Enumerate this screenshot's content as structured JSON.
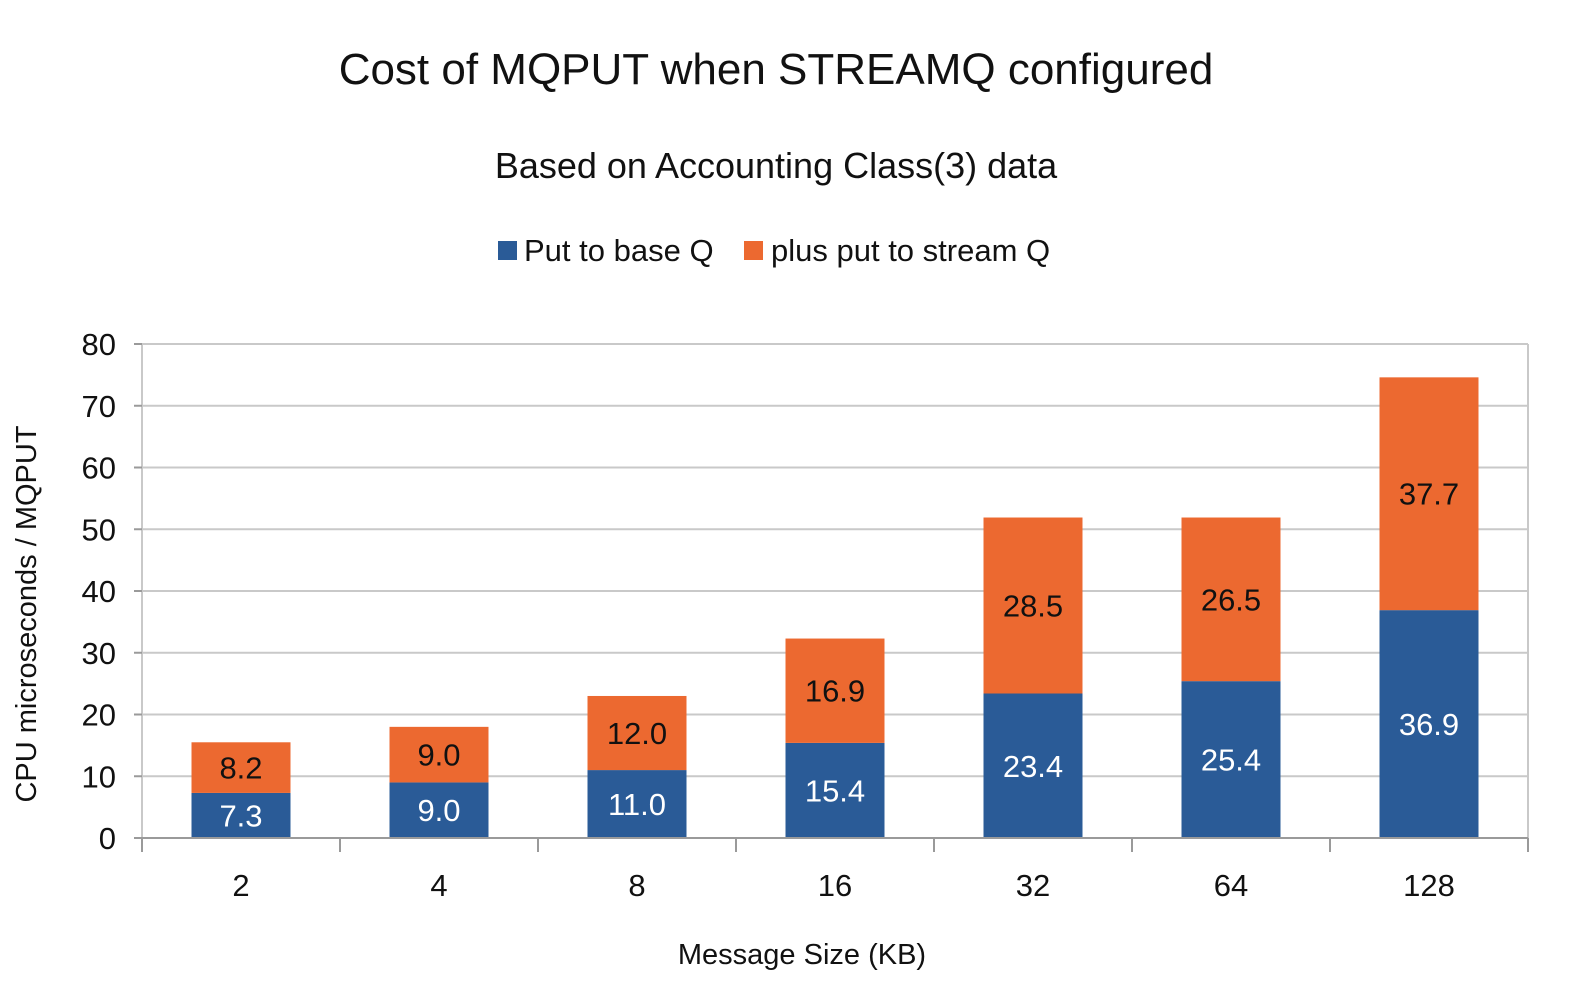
{
  "chart_data": {
    "type": "bar",
    "stacked": true,
    "title": "Cost of MQPUT when STREAMQ configured",
    "subtitle": "Based on Accounting Class(3) data",
    "xlabel": "Message Size (KB)",
    "ylabel": "CPU microseconds / MQPUT",
    "ylim": [
      0,
      80
    ],
    "yticks": [
      0,
      10,
      20,
      30,
      40,
      50,
      60,
      70,
      80
    ],
    "grid": true,
    "legend_position": "top",
    "categories": [
      "2",
      "4",
      "8",
      "16",
      "32",
      "64",
      "128"
    ],
    "series": [
      {
        "name": "Put to base Q",
        "color": "#2a5b97",
        "label_color": "#ffffff",
        "values": [
          7.3,
          9.0,
          11.0,
          15.4,
          23.4,
          25.4,
          36.9
        ],
        "labels": [
          "7.3",
          "9.0",
          "11.0",
          "15.4",
          "23.4",
          "25.4",
          "36.9"
        ]
      },
      {
        "name": "plus put to stream Q",
        "color": "#ec6930",
        "label_color": "#111111",
        "values": [
          8.2,
          9.0,
          12.0,
          16.9,
          28.5,
          26.5,
          37.7
        ],
        "labels": [
          "8.2",
          "9.0",
          "12.0",
          "16.9",
          "28.5",
          "26.5",
          "37.7"
        ]
      }
    ]
  }
}
